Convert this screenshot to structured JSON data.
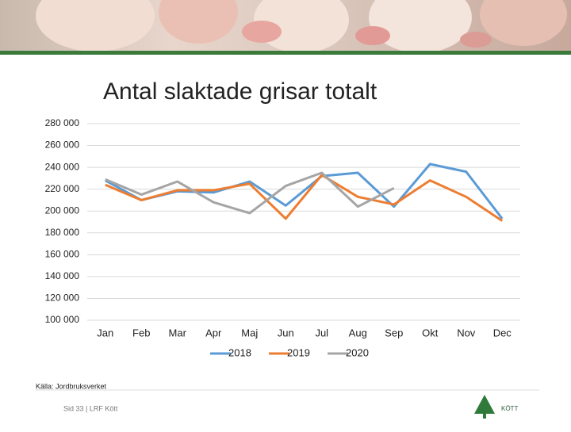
{
  "chart_data": {
    "type": "line",
    "title": "Antal slaktade grisar totalt",
    "categories": [
      "Jan",
      "Feb",
      "Mar",
      "Apr",
      "Maj",
      "Jun",
      "Jul",
      "Aug",
      "Sep",
      "Okt",
      "Nov",
      "Dec"
    ],
    "series": [
      {
        "name": "2018",
        "color": "#5b9bd5",
        "values": [
          228000,
          210000,
          218000,
          217000,
          227000,
          205000,
          232000,
          235000,
          204000,
          243000,
          236000,
          193000
        ]
      },
      {
        "name": "2019",
        "color": "#ed7d31",
        "values": [
          224000,
          210000,
          219000,
          219000,
          225000,
          193000,
          233000,
          213000,
          206000,
          228000,
          213000,
          191000
        ]
      },
      {
        "name": "2020",
        "color": "#a5a5a5",
        "values": [
          229000,
          215000,
          227000,
          208000,
          198000,
          223000,
          235000,
          204000,
          221000,
          null,
          null,
          null
        ]
      }
    ],
    "ylim": [
      100000,
      280000
    ],
    "yticks": [
      {
        "value": 100000,
        "label": "100 000"
      },
      {
        "value": 120000,
        "label": "120 000"
      },
      {
        "value": 140000,
        "label": "140 000"
      },
      {
        "value": 160000,
        "label": "160 000"
      },
      {
        "value": 180000,
        "label": "180 000"
      },
      {
        "value": 200000,
        "label": "200 000"
      },
      {
        "value": 220000,
        "label": "220 000"
      },
      {
        "value": 240000,
        "label": "240 000"
      },
      {
        "value": 260000,
        "label": "260 000"
      },
      {
        "value": 280000,
        "label": "280 000"
      }
    ],
    "grid": true,
    "legend": "bottom"
  },
  "footer": {
    "source": "Källa: Jordbruksverket",
    "page": "Sid 33 | LRF Kött",
    "logo": "KÖTT"
  }
}
